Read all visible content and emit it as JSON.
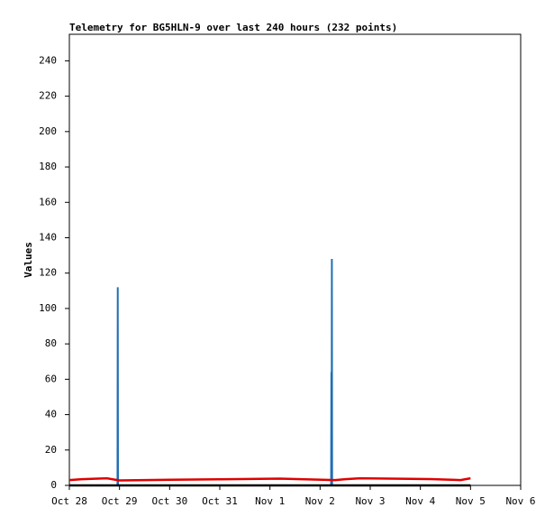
{
  "chart_data": {
    "type": "line",
    "title": "Telemetry for BG5HLN-9 over last 240 hours (232 points)",
    "y_label": "Values",
    "xlim": [
      0,
      9
    ],
    "xticks": [
      {
        "value": 0,
        "label": "Oct 28"
      },
      {
        "value": 1,
        "label": "Oct 29"
      },
      {
        "value": 2,
        "label": "Oct 30"
      },
      {
        "value": 3,
        "label": "Oct 31"
      },
      {
        "value": 4,
        "label": "Nov 1"
      },
      {
        "value": 5,
        "label": "Nov 2"
      },
      {
        "value": 6,
        "label": "Nov 3"
      },
      {
        "value": 7,
        "label": "Nov 4"
      },
      {
        "value": 8,
        "label": "Nov 5"
      },
      {
        "value": 9,
        "label": "Nov 6"
      }
    ],
    "ylim": [
      0,
      255
    ],
    "yticks": [
      0,
      20,
      40,
      60,
      80,
      100,
      120,
      140,
      160,
      180,
      200,
      220,
      240
    ],
    "series": [
      {
        "color": "#1f6fb4",
        "x": [
          0.96,
          0.965,
          0.97,
          5.22,
          5.225,
          5.23,
          5.235,
          5.24
        ],
        "values": [
          0,
          112,
          0,
          0,
          64,
          0,
          128,
          0
        ]
      },
      {
        "color": "#e00000",
        "x": [
          0,
          0.25,
          0.75,
          1.0,
          2.0,
          4.2,
          5.3,
          5.5,
          5.8,
          7.2,
          7.8,
          8.0
        ],
        "values": [
          3,
          3.5,
          4,
          2.8,
          3.2,
          3.8,
          3,
          3.5,
          4,
          3.6,
          3,
          4
        ]
      },
      {
        "color": "#000000",
        "x": [
          0,
          8
        ],
        "values": [
          0,
          0
        ]
      }
    ]
  }
}
